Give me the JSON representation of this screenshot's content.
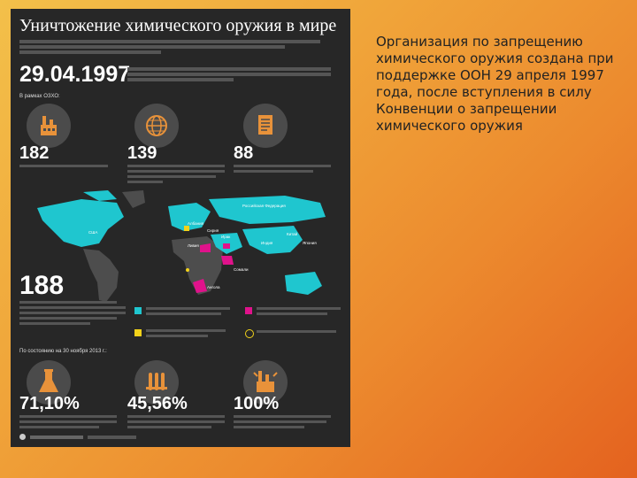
{
  "slide": {
    "text": "Организация по запрещению химического оружия создана при поддержке ООН 29 апреля 1997 года, после вступления в силу Конвенции о запрещении химического оружия"
  },
  "infographic": {
    "title": "Уничтожение химического оружия в мире",
    "date": "29.04.1997",
    "in_ranks_label": "В рамках ОЗХО:",
    "stats": [
      {
        "value": "182",
        "icon": "factory-icon"
      },
      {
        "value": "139",
        "icon": "globe-icon"
      },
      {
        "value": "88",
        "icon": "document-icon"
      }
    ],
    "big_number": "188",
    "as_of": "По состоянию на 30 ноября 2013 г.:",
    "percent_stats": [
      {
        "value": "71,10%",
        "icon": "flask-icon"
      },
      {
        "value": "45,56%",
        "icon": "test-tubes-icon"
      },
      {
        "value": "100%",
        "icon": "factory-icon"
      }
    ],
    "map_labels": [
      "США",
      "Российская Федерация",
      "Ливия",
      "Ирак",
      "Сирия",
      "Индия",
      "Албания",
      "Япония",
      "Китай",
      "Сомали",
      "Ангола"
    ],
    "colors": {
      "background": "#272727",
      "cyan": "#1fc6cf",
      "magenta": "#e0128b",
      "yellow": "#f2d21a",
      "land": "#4d4d4d"
    }
  }
}
